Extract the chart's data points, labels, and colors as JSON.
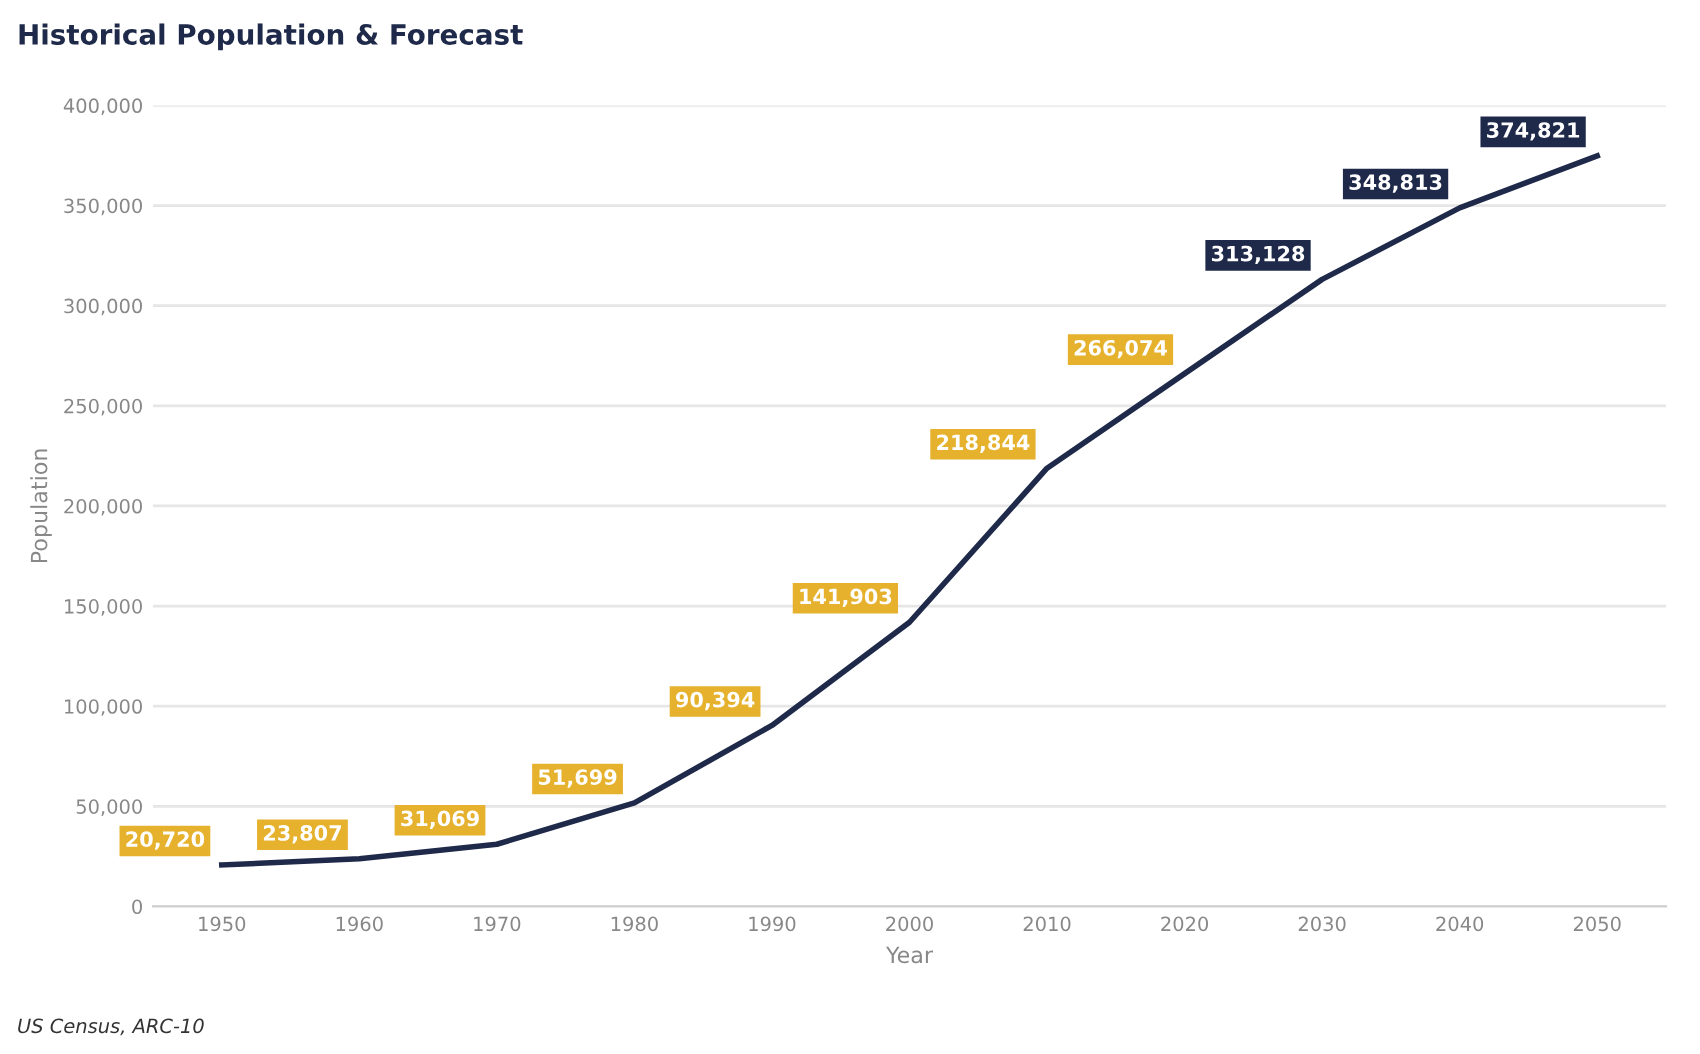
{
  "chart_data": {
    "type": "line",
    "title": "Historical Population & Forecast",
    "xlabel": "Year",
    "ylabel": "Population",
    "categories": [
      "1950",
      "1960",
      "1970",
      "1980",
      "1990",
      "2000",
      "2010",
      "2020",
      "2030",
      "2040",
      "2050"
    ],
    "series": [
      {
        "color": "#1f2a4a",
        "values": [
          20720,
          23807,
          31069,
          51699,
          90394,
          141903,
          218844,
          266074,
          313128,
          348813,
          374821
        ],
        "value_labels": [
          "20,720",
          "23,807",
          "31,069",
          "51,699",
          "90,394",
          "141,903",
          "218,844",
          "266,074",
          "313,128",
          "348,813",
          "374,821"
        ],
        "colors": [
          "#e6b22e",
          "#e6b22e",
          "#e6b22e",
          "#e6b22e",
          "#e6b22e",
          "#e6b22e",
          "#e6b22e",
          "#e6b22e",
          "#1f2a4a",
          "#1f2a4a",
          "#1f2a4a"
        ]
      }
    ],
    "ylim": [
      0,
      400000
    ],
    "yticks": [
      {
        "value": 0,
        "label": "0"
      },
      {
        "value": 50000,
        "label": "50,000"
      },
      {
        "value": 100000,
        "label": "100,000"
      },
      {
        "value": 150000,
        "label": "150,000"
      },
      {
        "value": 200000,
        "label": "200,000"
      },
      {
        "value": 250000,
        "label": "250,000"
      },
      {
        "value": 300000,
        "label": "300,000"
      },
      {
        "value": 350000,
        "label": "350,000"
      },
      {
        "value": 400000,
        "label": "400,000"
      }
    ],
    "grid": "y",
    "line_style": "solid",
    "annotations": [
      "US Census, ARC-10"
    ]
  }
}
